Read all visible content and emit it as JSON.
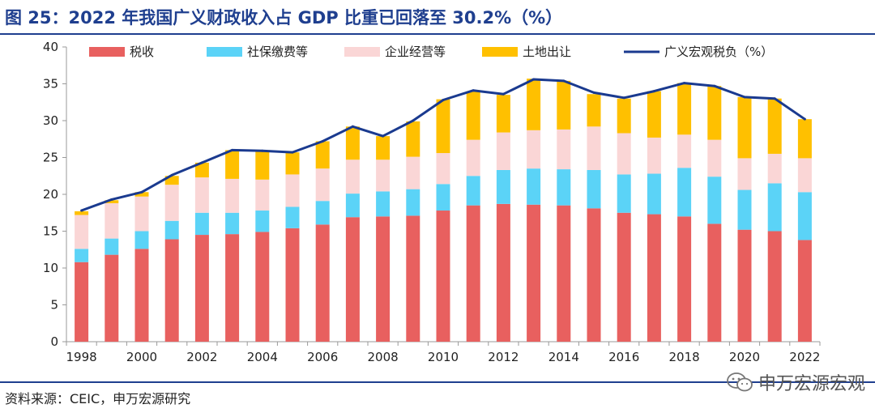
{
  "header": {
    "title": "图 25：2022 年我国广义财政收入占 GDP 比重已回落至 30.2%（%）"
  },
  "footer": {
    "source": "资料来源：CEIC，申万宏源研究",
    "watermark": "申万宏源宏观"
  },
  "chart_data": {
    "type": "bar",
    "stacked": true,
    "x": [
      1998,
      1999,
      2000,
      2001,
      2002,
      2003,
      2004,
      2005,
      2006,
      2007,
      2008,
      2009,
      2010,
      2011,
      2012,
      2013,
      2014,
      2015,
      2016,
      2017,
      2018,
      2019,
      2020,
      2021,
      2022
    ],
    "x_tick_labels": [
      "1998",
      "2000",
      "2002",
      "2004",
      "2006",
      "2008",
      "2010",
      "2012",
      "2014",
      "2016",
      "2018",
      "2020",
      "2022"
    ],
    "ylim": [
      0,
      40
    ],
    "y_ticks": [
      0,
      5,
      10,
      15,
      20,
      25,
      30,
      35,
      40
    ],
    "grid": false,
    "legend_position": "top",
    "series": [
      {
        "name": "税收",
        "kind": "bar",
        "color": "#e8605f",
        "values": [
          10.8,
          11.8,
          12.6,
          13.9,
          14.5,
          14.6,
          14.9,
          15.4,
          15.9,
          16.9,
          17.0,
          17.1,
          17.8,
          18.5,
          18.7,
          18.6,
          18.5,
          18.1,
          17.5,
          17.3,
          17.0,
          16.0,
          15.2,
          15.0,
          13.8
        ]
      },
      {
        "name": "社保缴费等",
        "kind": "bar",
        "color": "#5bd3f7",
        "values": [
          1.8,
          2.2,
          2.4,
          2.5,
          3.0,
          2.9,
          2.9,
          2.9,
          3.2,
          3.2,
          3.4,
          3.6,
          3.6,
          4.0,
          4.6,
          4.9,
          4.9,
          5.2,
          5.2,
          5.5,
          6.6,
          6.4,
          5.4,
          6.5,
          6.5
        ]
      },
      {
        "name": "企业经营等",
        "kind": "bar",
        "color": "#fad6d6",
        "values": [
          4.6,
          4.8,
          4.7,
          4.9,
          4.8,
          4.6,
          4.2,
          4.4,
          4.4,
          4.6,
          4.3,
          4.4,
          4.2,
          4.9,
          5.1,
          5.2,
          5.4,
          5.9,
          5.6,
          4.9,
          4.5,
          5.0,
          4.3,
          4.0,
          4.6
        ]
      },
      {
        "name": "土地出让",
        "kind": "bar",
        "color": "#ffc000",
        "values": [
          0.5,
          0.4,
          0.6,
          1.2,
          2.0,
          3.9,
          3.9,
          3.0,
          3.7,
          4.5,
          3.2,
          4.8,
          7.3,
          6.6,
          5.1,
          7.0,
          6.6,
          4.4,
          4.7,
          6.3,
          7.0,
          7.3,
          8.3,
          7.5,
          5.3
        ]
      },
      {
        "name": "广义宏观税负（%）",
        "kind": "line",
        "color": "#1a3a8f",
        "values": [
          17.8,
          19.3,
          20.3,
          22.6,
          24.3,
          26.0,
          25.9,
          25.7,
          27.2,
          29.2,
          27.9,
          30.0,
          32.8,
          34.1,
          33.6,
          35.6,
          35.4,
          33.8,
          33.1,
          34.0,
          35.1,
          34.7,
          33.2,
          33.0,
          30.2
        ]
      }
    ]
  }
}
